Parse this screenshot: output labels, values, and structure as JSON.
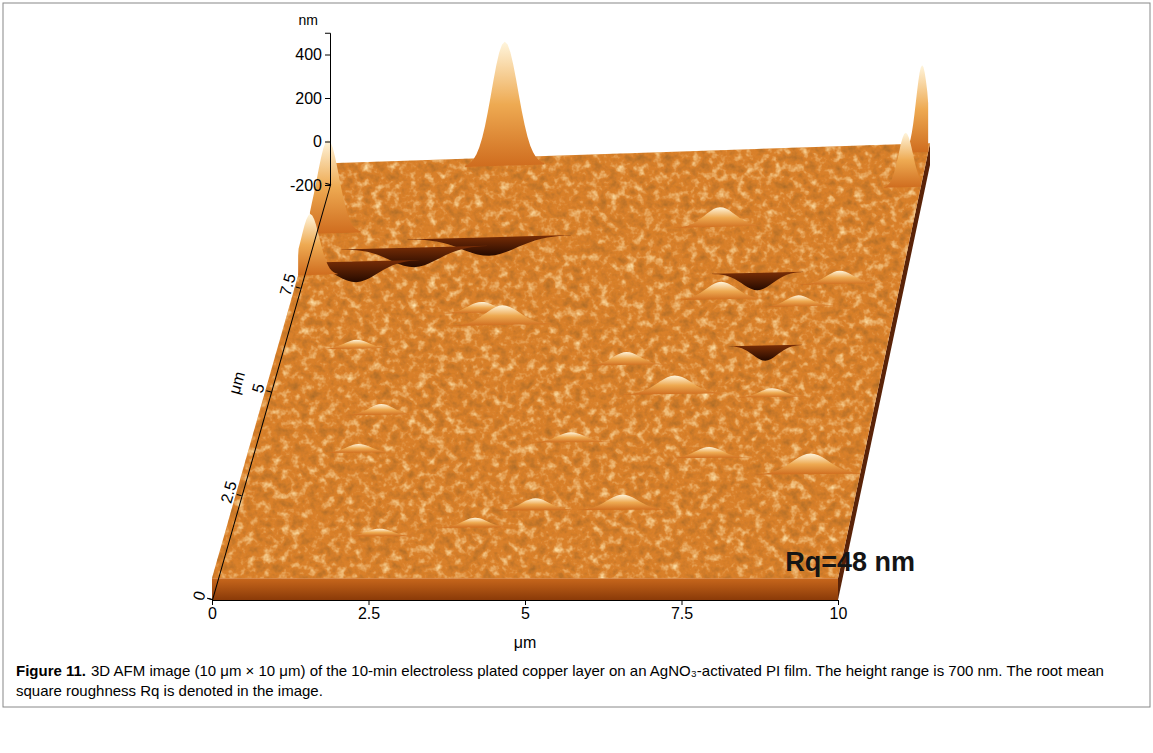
{
  "chart_data": {
    "type": "surface",
    "annotation": "Rq=48 nm",
    "xlabel": "μm",
    "ylabel": "μm",
    "zlabel": "nm",
    "xlim": [
      0,
      10
    ],
    "xticks": [
      0,
      2.5,
      5,
      7.5,
      10
    ],
    "ylim": [
      0,
      10
    ],
    "yticks": [
      0,
      2.5,
      5,
      7.5
    ],
    "zlim": [
      -200,
      500
    ],
    "zticks": [
      -200,
      0,
      200,
      400
    ],
    "mean_height": -100,
    "features": [
      {
        "x": 2.95,
        "y": 9.8,
        "z": 470,
        "width": 0.22
      },
      {
        "x": 9.9,
        "y": 9.8,
        "z": 300,
        "width": 0.1
      },
      {
        "x": 9.75,
        "y": 9.0,
        "z": 150,
        "width": 0.12
      },
      {
        "x": 0.3,
        "y": 8.3,
        "z": 330,
        "width": 0.18
      },
      {
        "x": 6.8,
        "y": 8.2,
        "z": -10,
        "width": 0.25
      },
      {
        "x": 3.0,
        "y": 8.1,
        "z": -185,
        "width": 0.45
      },
      {
        "x": 1.8,
        "y": 7.9,
        "z": -190,
        "width": 0.4
      },
      {
        "x": 0.9,
        "y": 7.6,
        "z": -195,
        "width": 0.35
      },
      {
        "x": 0.2,
        "y": 7.3,
        "z": 180,
        "width": 0.15
      },
      {
        "x": 7.6,
        "y": 7.1,
        "z": -180,
        "width": 0.25
      },
      {
        "x": 9.0,
        "y": 6.8,
        "z": -40,
        "width": 0.22
      },
      {
        "x": 7.1,
        "y": 6.5,
        "z": -20,
        "width": 0.25
      },
      {
        "x": 8.4,
        "y": 6.3,
        "z": -50,
        "width": 0.2
      },
      {
        "x": 3.2,
        "y": 6.3,
        "z": -50,
        "width": 0.22
      },
      {
        "x": 3.6,
        "y": 6.0,
        "z": -10,
        "width": 0.28
      },
      {
        "x": 1.3,
        "y": 5.5,
        "z": -60,
        "width": 0.2
      },
      {
        "x": 8.0,
        "y": 5.4,
        "z": -170,
        "width": 0.2
      },
      {
        "x": 5.8,
        "y": 5.0,
        "z": -40,
        "width": 0.22
      },
      {
        "x": 6.7,
        "y": 4.3,
        "z": -15,
        "width": 0.28
      },
      {
        "x": 8.3,
        "y": 4.2,
        "z": -60,
        "width": 0.2
      },
      {
        "x": 2.0,
        "y": 3.9,
        "z": -50,
        "width": 0.2
      },
      {
        "x": 5.2,
        "y": 3.2,
        "z": -55,
        "width": 0.22
      },
      {
        "x": 1.8,
        "y": 3.0,
        "z": -60,
        "width": 0.2
      },
      {
        "x": 7.5,
        "y": 2.8,
        "z": -50,
        "width": 0.22
      },
      {
        "x": 9.2,
        "y": 2.4,
        "z": -5,
        "width": 0.3
      },
      {
        "x": 6.3,
        "y": 1.6,
        "z": -30,
        "width": 0.25
      },
      {
        "x": 4.9,
        "y": 1.6,
        "z": -45,
        "width": 0.22
      },
      {
        "x": 4.0,
        "y": 1.2,
        "z": -55,
        "width": 0.2
      },
      {
        "x": 2.5,
        "y": 1.0,
        "z": -65,
        "width": 0.2
      }
    ]
  },
  "caption": {
    "label": "Figure 11.",
    "text": "3D AFM image (10 μm × 10 μm) of the 10-min electroless plated copper layer on an AgNO₃-activated PI film. The height range is 700 nm. The root mean square roughness Rq is denoted in the image."
  }
}
